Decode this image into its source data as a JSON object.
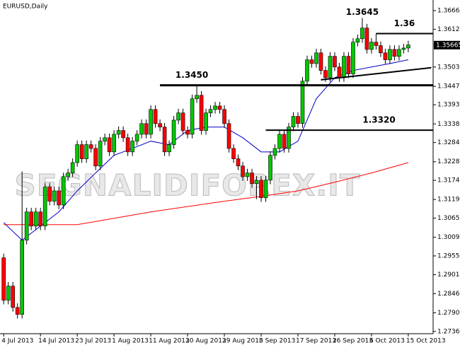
{
  "chart_data": {
    "type": "candlestick",
    "title": "EURUSD,Daily",
    "watermark": "SEGNALIDIFOREX.IT",
    "up_color": "#00c800",
    "down_color": "#ff0000",
    "open": [
      1.295,
      1.2827,
      1.2868,
      1.2806,
      1.2786,
      1.3001,
      1.3083,
      1.3042,
      1.3083,
      1.3042,
      1.3155,
      1.3114,
      1.3144,
      1.3103,
      1.3185,
      1.3196,
      1.3226,
      1.3278,
      1.3237,
      1.3278,
      1.3267,
      1.3216,
      1.3288,
      1.3298,
      1.3257,
      1.3308,
      1.3319,
      1.3298,
      1.3257,
      1.3288,
      1.3308,
      1.3339,
      1.3308,
      1.338,
      1.3339,
      1.3329,
      1.3257,
      1.3278,
      1.3349,
      1.337,
      1.3319,
      1.3308,
      1.3411,
      1.3421,
      1.3319,
      1.337,
      1.338,
      1.339,
      1.338,
      1.3339,
      1.3267,
      1.3237,
      1.3216,
      1.3185,
      1.3196,
      1.3165,
      1.3175,
      1.3124,
      1.3175,
      1.3247,
      1.3267,
      1.3308,
      1.3267,
      1.3329,
      1.336,
      1.3339,
      1.3462,
      1.3524,
      1.3513,
      1.3544,
      1.3493,
      1.3472,
      1.3534,
      1.3503,
      1.3472,
      1.3534,
      1.3483,
      1.3575,
      1.3585,
      1.3616,
      1.3554,
      1.3575,
      1.3565,
      1.3544,
      1.3524,
      1.3554,
      1.3534,
      1.3554,
      1.3558
    ],
    "high": [
      1.2962,
      1.288,
      1.288,
      1.2818,
      1.32,
      1.3095,
      1.3095,
      1.3095,
      1.3095,
      1.3167,
      1.3167,
      1.3156,
      1.3156,
      1.3197,
      1.3208,
      1.3238,
      1.329,
      1.329,
      1.329,
      1.329,
      1.3279,
      1.33,
      1.331,
      1.331,
      1.332,
      1.3331,
      1.3331,
      1.331,
      1.33,
      1.332,
      1.3351,
      1.3351,
      1.3392,
      1.3392,
      1.3351,
      1.3341,
      1.329,
      1.3361,
      1.3382,
      1.3382,
      1.3331,
      1.3423,
      1.345,
      1.3433,
      1.3382,
      1.3392,
      1.3402,
      1.3402,
      1.3392,
      1.3351,
      1.3279,
      1.3249,
      1.3228,
      1.3208,
      1.3208,
      1.3187,
      1.3187,
      1.3187,
      1.3259,
      1.3279,
      1.332,
      1.332,
      1.3341,
      1.3372,
      1.3372,
      1.3474,
      1.3536,
      1.3536,
      1.3556,
      1.3556,
      1.3505,
      1.3546,
      1.3546,
      1.3515,
      1.3546,
      1.3546,
      1.3587,
      1.3597,
      1.3645,
      1.3628,
      1.3587,
      1.36,
      1.3577,
      1.3556,
      1.3566,
      1.3566,
      1.3566,
      1.357,
      1.3579
    ],
    "low": [
      1.2815,
      1.2815,
      1.2794,
      1.2774,
      1.2774,
      1.2989,
      1.303,
      1.303,
      1.303,
      1.303,
      1.3102,
      1.3102,
      1.3091,
      1.3091,
      1.3173,
      1.3184,
      1.3214,
      1.3225,
      1.3225,
      1.3255,
      1.3204,
      1.3204,
      1.3276,
      1.3245,
      1.3245,
      1.3296,
      1.3286,
      1.3245,
      1.3245,
      1.3276,
      1.3296,
      1.3296,
      1.3296,
      1.3327,
      1.3317,
      1.3245,
      1.3245,
      1.3266,
      1.3337,
      1.3307,
      1.3296,
      1.3296,
      1.3399,
      1.3307,
      1.3307,
      1.3358,
      1.3368,
      1.3368,
      1.3327,
      1.3255,
      1.3225,
      1.3204,
      1.3173,
      1.3173,
      1.3153,
      1.312,
      1.3112,
      1.3112,
      1.3163,
      1.3235,
      1.3255,
      1.3255,
      1.3255,
      1.3317,
      1.3327,
      1.3327,
      1.345,
      1.3501,
      1.3501,
      1.3481,
      1.346,
      1.346,
      1.3491,
      1.346,
      1.346,
      1.3471,
      1.3471,
      1.3563,
      1.3573,
      1.3542,
      1.3542,
      1.3553,
      1.3532,
      1.3512,
      1.3512,
      1.3522,
      1.3522,
      1.3542,
      1.3546
    ],
    "close": [
      1.2827,
      1.2868,
      1.2806,
      1.2786,
      1.3001,
      1.3083,
      1.3042,
      1.3083,
      1.3042,
      1.3155,
      1.3114,
      1.3144,
      1.3103,
      1.3185,
      1.3196,
      1.3226,
      1.3278,
      1.3237,
      1.3278,
      1.3267,
      1.3216,
      1.3288,
      1.3298,
      1.3257,
      1.3308,
      1.3319,
      1.3298,
      1.3257,
      1.3288,
      1.3308,
      1.3339,
      1.3308,
      1.338,
      1.3339,
      1.3329,
      1.3257,
      1.3278,
      1.3349,
      1.337,
      1.3319,
      1.3308,
      1.3411,
      1.3421,
      1.3319,
      1.337,
      1.338,
      1.339,
      1.338,
      1.3339,
      1.3267,
      1.3237,
      1.3216,
      1.3185,
      1.3196,
      1.3165,
      1.3175,
      1.3124,
      1.3175,
      1.3247,
      1.3267,
      1.3308,
      1.3267,
      1.3329,
      1.336,
      1.3339,
      1.3462,
      1.3524,
      1.3513,
      1.3544,
      1.3493,
      1.3472,
      1.3534,
      1.3503,
      1.3472,
      1.3534,
      1.3483,
      1.3575,
      1.3585,
      1.3616,
      1.3554,
      1.3575,
      1.3565,
      1.3544,
      1.3524,
      1.3554,
      1.3534,
      1.3554,
      1.3558,
      1.3567
    ],
    "lines": [
      {
        "color": "#0000cc",
        "x": [
          0,
          4,
          8,
          12,
          16,
          20,
          24,
          28,
          32,
          36,
          40,
          44,
          48,
          52,
          56,
          60,
          64,
          68,
          72,
          76,
          80,
          84,
          88
        ],
        "values": [
          1.3052,
          1.3001,
          1.3042,
          1.3083,
          1.3144,
          1.3196,
          1.3247,
          1.3267,
          1.3288,
          1.3278,
          1.3319,
          1.3329,
          1.3329,
          1.3298,
          1.3257,
          1.3257,
          1.3288,
          1.3411,
          1.3472,
          1.3493,
          1.3503,
          1.3513,
          1.3524
        ]
      },
      {
        "color": "#ff0000",
        "x": [
          0,
          16,
          32,
          48,
          56,
          64,
          72,
          80,
          88
        ],
        "values": [
          1.3046,
          1.3046,
          1.3083,
          1.3114,
          1.3128,
          1.3144,
          1.3169,
          1.3196,
          1.3226
        ]
      }
    ],
    "levels": [
      {
        "value": 1.345,
        "label": "1.3450",
        "start": 34
      },
      {
        "value": 1.332,
        "label": "1.3320",
        "start": 57
      },
      {
        "value": 1.36,
        "label": "1.36",
        "start": 81
      }
    ],
    "peak": {
      "value": 1.3645,
      "label": "1.3645",
      "x": 78
    },
    "trendline": {
      "x": [
        69,
        93
      ],
      "values": [
        1.3466,
        1.3501
      ]
    },
    "last_price": 1.35665,
    "xlim": [
      -0.8,
      93.4
    ],
    "ylim": [
      1.273,
      1.3687
    ],
    "yticks": [
      1.36665,
      1.36125,
      {
        "value": 1.3503,
        "label": "1.35030"
      },
      {
        "value": 1.3447,
        "label": "1.34470"
      },
      1.33935,
      {
        "value": 1.3338,
        "label": "1.33380"
      },
      {
        "value": 1.3284,
        "label": "1.32840"
      },
      1.32285,
      1.31745,
      {
        "value": 1.3119,
        "label": "1.31190"
      },
      {
        "value": 1.3065,
        "label": "1.30650"
      },
      1.30095,
      1.29555,
      {
        "value": 1.2901,
        "label": "1.29010"
      },
      {
        "value": 1.2846,
        "label": "1.28460"
      },
      1.27905,
      1.27365
    ],
    "xticks": [
      {
        "value": 0,
        "label": "4 Jul 2013"
      },
      {
        "value": 8,
        "label": "14 Jul 2013"
      },
      {
        "value": 16,
        "label": "23 Jul 2013"
      },
      {
        "value": 24,
        "label": "1 Aug 2013"
      },
      {
        "value": 32,
        "label": "11 Aug 2013"
      },
      {
        "value": 40,
        "label": "20 Aug 2013"
      },
      {
        "value": 48,
        "label": "29 Aug 2013"
      },
      {
        "value": 56,
        "label": "8 Sep 2013"
      },
      {
        "value": 64,
        "label": "17 Sep 2013"
      },
      {
        "value": 72,
        "label": "26 Sep 2013"
      },
      {
        "value": 80,
        "label": "6 Oct 2013"
      },
      {
        "value": 88,
        "label": "15 Oct 2013"
      }
    ]
  }
}
